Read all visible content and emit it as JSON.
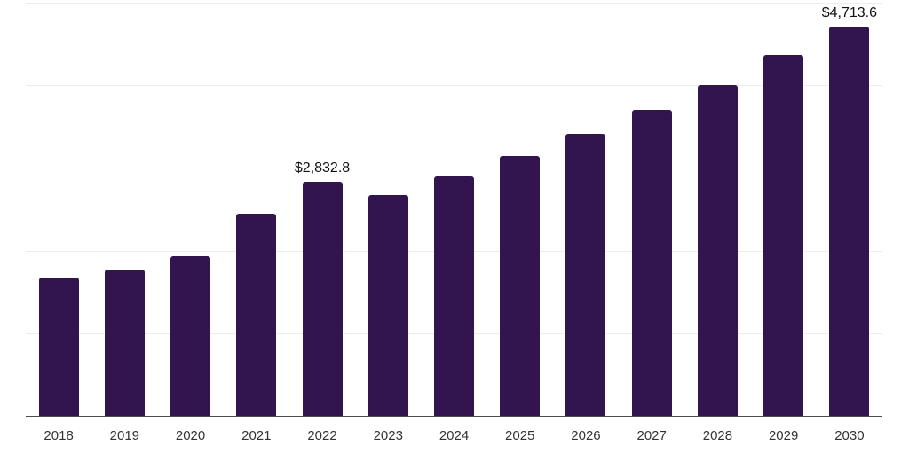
{
  "chart_data": {
    "type": "bar",
    "title": "",
    "xlabel": "",
    "ylabel": "",
    "categories": [
      "2018",
      "2019",
      "2020",
      "2021",
      "2022",
      "2023",
      "2024",
      "2025",
      "2026",
      "2027",
      "2028",
      "2029",
      "2030"
    ],
    "values": [
      1674,
      1770,
      1931,
      2446,
      2832.8,
      2672,
      2897,
      3144,
      3412,
      3702,
      4002,
      4367,
      4713.6
    ],
    "data_labels": {
      "2022": "$2,832.8",
      "2030": "$4,713.6"
    },
    "ylim": [
      0,
      5000
    ],
    "grid_step": 1000,
    "grid": "horizontal-only",
    "legend": "none",
    "y_axis_labels": "none",
    "bar_color": "#32144E",
    "grid_color": "#ededed",
    "axis_color": "#4d4d4d",
    "tick_label_color": "#333333",
    "data_label_color": "#111111",
    "background_color": "#ffffff"
  }
}
